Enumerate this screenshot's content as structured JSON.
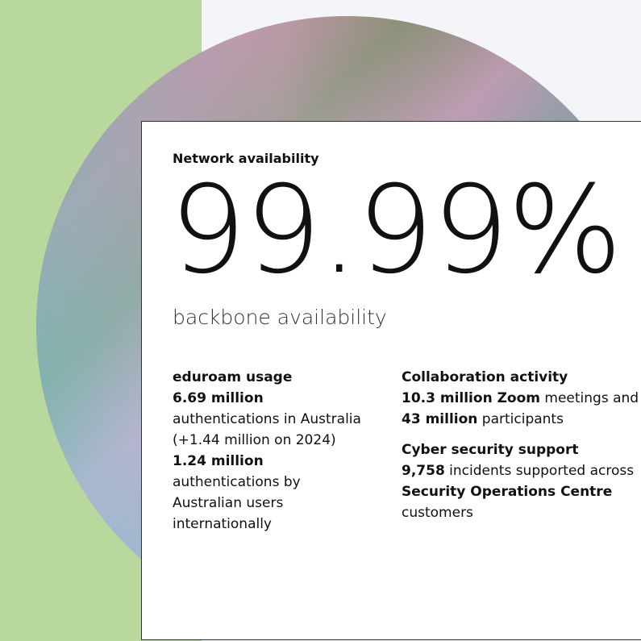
{
  "card": {
    "heading": "Network availability",
    "big_number": "99.99%",
    "big_caption": "backbone availability",
    "left": {
      "title": "eduroam usage",
      "blocks": [
        [
          {
            "text": "6.69 million",
            "bold": true
          }
        ],
        [
          {
            "text": "authentications in Australia",
            "bold": false
          }
        ],
        [
          {
            "text": "(+1.44 million on 2024)",
            "bold": false
          }
        ],
        [
          {
            "text": "1.24 million",
            "bold": true
          }
        ],
        [
          {
            "text": "authentications by Australian users internationally",
            "bold": false
          }
        ]
      ]
    },
    "right": [
      {
        "title": "Collaboration activity",
        "segments": [
          {
            "text": "10.3 million Zoom",
            "bold": true
          },
          {
            "text": " meetings and ",
            "bold": false
          },
          {
            "text": "43 million",
            "bold": true
          },
          {
            "text": " participants",
            "bold": false
          }
        ]
      },
      {
        "title": "Cyber security support",
        "segments": [
          {
            "text": "9,758",
            "bold": true
          },
          {
            "text": " incidents supported across ",
            "bold": false
          },
          {
            "text": "Security Operations Centre",
            "bold": true
          },
          {
            "text": " customers",
            "bold": false
          }
        ]
      }
    ]
  }
}
